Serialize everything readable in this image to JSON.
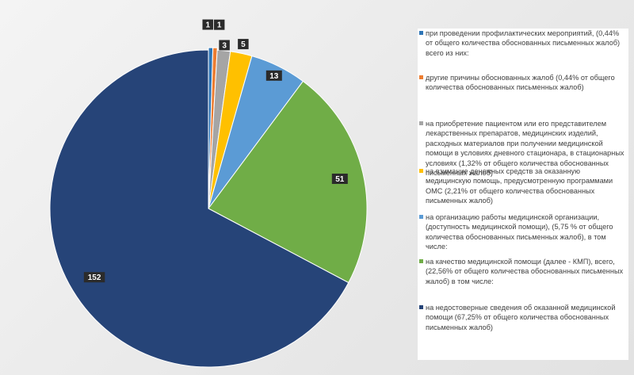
{
  "chart_data": {
    "type": "pie",
    "title": "",
    "slices": [
      {
        "label": "при проведении профилактических мероприятий, (0,44% от общего количества обоснованных письменных жалоб) всего из них:",
        "value": 1,
        "color": "#2e75b6"
      },
      {
        "label": "другие причины обоснованных жалоб (0,44% от общего количества обоснованных письменных жалоб)",
        "value": 1,
        "color": "#ed7d31"
      },
      {
        "label": "на приобретение пациентом или его представителем лекарственных препаратов, медицинских изделий, расходных материалов при получении медицинской помощи в условиях дневного стационара, в стационарных условиях (1,32% от общего количества обоснованных письменных жалоб)",
        "value": 3,
        "color": "#a5a5a5"
      },
      {
        "label": "на взимание денежных средств за оказанную медицинскую помощь, предусмотренную программами ОМС (2,21% от общего количества обоснованных письменных жалоб)",
        "value": 5,
        "color": "#ffc000"
      },
      {
        "label": "на организацию работы медицинской организации, (доступность медицинской помощи), (5,75 % от общего количества обоснованных письменных жалоб), в том числе:",
        "value": 13,
        "color": "#5b9bd5"
      },
      {
        "label": "на качество медицинской помощи (далее - КМП), всего, (22,56% от общего количества обоснованных письменных жалоб) в том числе:",
        "value": 51,
        "color": "#70ad47"
      },
      {
        "label": "на недостоверные сведения об оказанной медицинской помощи (67,25% от общего количества обоснованных письменных жалоб)",
        "value": 152,
        "color": "#264478"
      }
    ],
    "legend_position": "right"
  }
}
